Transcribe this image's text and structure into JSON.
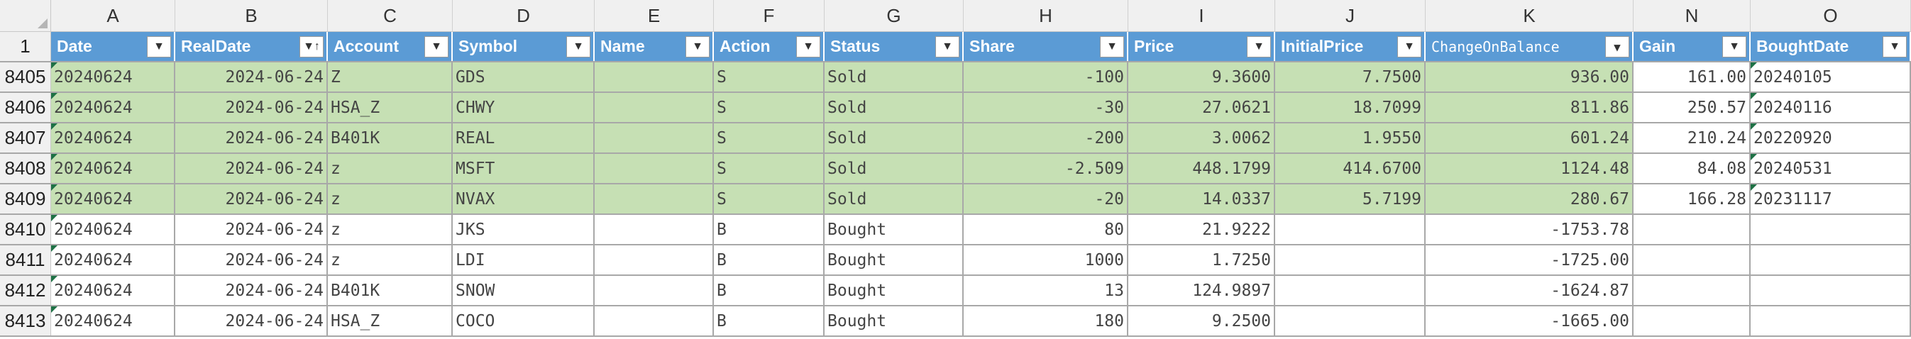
{
  "colors": {
    "header_fill": "#5b9bd5",
    "sold_fill": "#c6e0b4",
    "header_text": "#ffffff"
  },
  "column_letters": [
    "A",
    "B",
    "C",
    "D",
    "E",
    "F",
    "G",
    "H",
    "I",
    "J",
    "K",
    "N",
    "O"
  ],
  "header_row_number": "1",
  "headers": [
    "Date",
    "RealDate",
    "Account",
    "Symbol",
    "Name",
    "Action",
    "Status",
    "Share",
    "Price",
    "InitialPrice",
    "ChangeOnBalance",
    "Gain",
    "BoughtDate"
  ],
  "icons": {
    "filter": "filter-dropdown-icon",
    "sort": "sort-filter-icon"
  },
  "rows": [
    {
      "num": "8405",
      "status_type": "sold",
      "cells": [
        "20240624",
        "2024-06-24",
        "Z",
        "GDS",
        "",
        "S",
        "Sold",
        "-100",
        "9.3600",
        "7.7500",
        "936.00",
        "161.00",
        "20240105"
      ]
    },
    {
      "num": "8406",
      "status_type": "sold",
      "cells": [
        "20240624",
        "2024-06-24",
        "HSA_Z",
        "CHWY",
        "",
        "S",
        "Sold",
        "-30",
        "27.0621",
        "18.7099",
        "811.86",
        "250.57",
        "20240116"
      ]
    },
    {
      "num": "8407",
      "status_type": "sold",
      "cells": [
        "20240624",
        "2024-06-24",
        "B401K",
        "REAL",
        "",
        "S",
        "Sold",
        "-200",
        "3.0062",
        "1.9550",
        "601.24",
        "210.24",
        "20220920"
      ]
    },
    {
      "num": "8408",
      "status_type": "sold",
      "cells": [
        "20240624",
        "2024-06-24",
        "z",
        "MSFT",
        "",
        "S",
        "Sold",
        "-2.509",
        "448.1799",
        "414.6700",
        "1124.48",
        "84.08",
        "20240531"
      ]
    },
    {
      "num": "8409",
      "status_type": "sold",
      "cells": [
        "20240624",
        "2024-06-24",
        "z",
        "NVAX",
        "",
        "S",
        "Sold",
        "-20",
        "14.0337",
        "5.7199",
        "280.67",
        "166.28",
        "20231117"
      ]
    },
    {
      "num": "8410",
      "status_type": "bought",
      "cells": [
        "20240624",
        "2024-06-24",
        "z",
        "JKS",
        "",
        "B",
        "Bought",
        "80",
        "21.9222",
        "",
        "-1753.78",
        "",
        ""
      ]
    },
    {
      "num": "8411",
      "status_type": "bought",
      "cells": [
        "20240624",
        "2024-06-24",
        "z",
        "LDI",
        "",
        "B",
        "Bought",
        "1000",
        "1.7250",
        "",
        "-1725.00",
        "",
        ""
      ]
    },
    {
      "num": "8412",
      "status_type": "bought",
      "cells": [
        "20240624",
        "2024-06-24",
        "B401K",
        "SNOW",
        "",
        "B",
        "Bought",
        "13",
        "124.9897",
        "",
        "-1624.87",
        "",
        ""
      ]
    },
    {
      "num": "8413",
      "status_type": "bought",
      "cells": [
        "20240624",
        "2024-06-24",
        "HSA_Z",
        "COCO",
        "",
        "B",
        "Bought",
        "180",
        "9.2500",
        "",
        "-1665.00",
        "",
        ""
      ]
    }
  ]
}
